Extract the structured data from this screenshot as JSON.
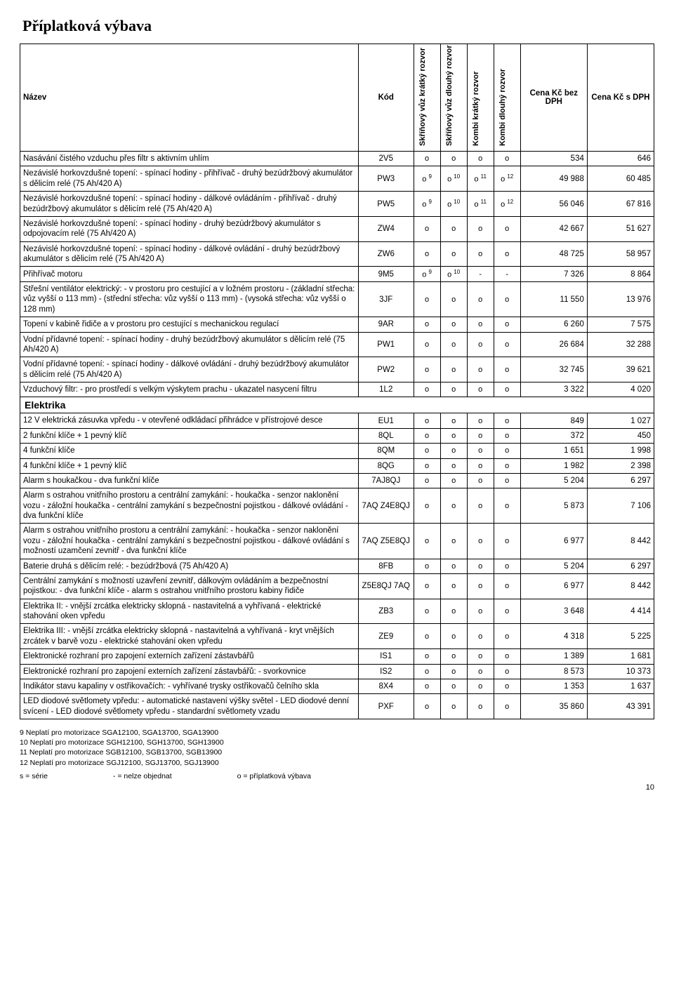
{
  "title": "Příplatková výbava",
  "headers": {
    "name": "Název",
    "kod": "Kód",
    "cols": [
      "Skříňový vůz krátký rozvor",
      "Skříňový vůz dlouhý rozvor",
      "Kombi krátký rozvor",
      "Kombi dlouhý rozvor"
    ],
    "price_no_vat": "Cena Kč bez DPH",
    "price_vat": "Cena Kč s DPH"
  },
  "rows": [
    {
      "name": "Nasávání čistého vzduchu přes filtr s aktivním uhlím",
      "kod": "2V5",
      "avail": [
        "o",
        "o",
        "o",
        "o"
      ],
      "p1": "534",
      "p2": "646"
    },
    {
      "name": "Nezávislé horkovzdušné topení: - spínací hodiny - přihřívač - druhý bezúdržbový akumulátor s dělicím relé (75 Ah/420 A)",
      "kod": "PW3",
      "avail": [
        "o 9",
        "o 10",
        "o 11",
        "o 12"
      ],
      "sup": true,
      "p1": "49 988",
      "p2": "60 485"
    },
    {
      "name": "Nezávislé horkovzdušné topení: - spínací hodiny - dálkové ovládáním - přihřívač - druhý bezúdržbový akumulátor s dělicím relé (75 Ah/420 A)",
      "kod": "PW5",
      "avail": [
        "o 9",
        "o 10",
        "o 11",
        "o 12"
      ],
      "sup": true,
      "p1": "56 046",
      "p2": "67 816"
    },
    {
      "name": "Nezávislé horkovzdušné topení: - spínací hodiny - druhý bezúdržbový akumulátor s odpojovacím relé (75 Ah/420 A)",
      "kod": "ZW4",
      "avail": [
        "o",
        "o",
        "o",
        "o"
      ],
      "p1": "42 667",
      "p2": "51 627"
    },
    {
      "name": "Nezávislé horkovzdušné topení: - spínací hodiny - dálkové ovládání - druhý bezúdržbový akumulátor s dělicím relé (75 Ah/420 A)",
      "kod": "ZW6",
      "avail": [
        "o",
        "o",
        "o",
        "o"
      ],
      "p1": "48 725",
      "p2": "58 957"
    },
    {
      "name": "Přihřívač motoru",
      "kod": "9M5",
      "avail": [
        "o 9",
        "o 10",
        "-",
        "-"
      ],
      "sup": true,
      "p1": "7 326",
      "p2": "8 864"
    },
    {
      "name": "Střešní ventilátor elektrický: - v prostoru pro cestující a v ložném prostoru - (základní střecha: vůz vyšší o 113 mm) - (střední střecha: vůz vyšší o 113 mm) - (vysoká střecha: vůz vyšší o 128 mm)",
      "kod": "3JF",
      "avail": [
        "o",
        "o",
        "o",
        "o"
      ],
      "p1": "11 550",
      "p2": "13 976"
    },
    {
      "name": "Topení v kabině řidiče a v prostoru pro cestující s mechanickou regulací",
      "kod": "9AR",
      "avail": [
        "o",
        "o",
        "o",
        "o"
      ],
      "p1": "6 260",
      "p2": "7 575"
    },
    {
      "name": "Vodní přídavné topení: - spínací hodiny - druhý bezúdržbový akumulátor s dělicím relé (75 Ah/420 A)",
      "kod": "PW1",
      "avail": [
        "o",
        "o",
        "o",
        "o"
      ],
      "p1": "26 684",
      "p2": "32 288"
    },
    {
      "name": "Vodní přídavné topení: - spínací hodiny - dálkové ovládání - druhý bezúdržbový akumulátor s dělicím relé (75 Ah/420 A)",
      "kod": "PW2",
      "avail": [
        "o",
        "o",
        "o",
        "o"
      ],
      "p1": "32 745",
      "p2": "39 621"
    },
    {
      "name": "Vzduchový filtr: - pro prostředí s velkým výskytem prachu - ukazatel nasycení filtru",
      "kod": "1L2",
      "avail": [
        "o",
        "o",
        "o",
        "o"
      ],
      "p1": "3 322",
      "p2": "4 020"
    },
    {
      "section": "Elektrika"
    },
    {
      "name": "12 V elektrická zásuvka vpředu - v otevřené odkládací přihrádce v přístrojové desce",
      "kod": "EU1",
      "avail": [
        "o",
        "o",
        "o",
        "o"
      ],
      "p1": "849",
      "p2": "1 027"
    },
    {
      "name": "2 funkční klíče + 1 pevný klíč",
      "kod": "8QL",
      "avail": [
        "o",
        "o",
        "o",
        "o"
      ],
      "p1": "372",
      "p2": "450"
    },
    {
      "name": "4 funkční klíče",
      "kod": "8QM",
      "avail": [
        "o",
        "o",
        "o",
        "o"
      ],
      "p1": "1 651",
      "p2": "1 998"
    },
    {
      "name": "4 funkční klíče + 1 pevný klíč",
      "kod": "8QG",
      "avail": [
        "o",
        "o",
        "o",
        "o"
      ],
      "p1": "1 982",
      "p2": "2 398"
    },
    {
      "name": "Alarm s houkačkou - dva funkční klíče",
      "kod": "7AJ8QJ",
      "avail": [
        "o",
        "o",
        "o",
        "o"
      ],
      "p1": "5 204",
      "p2": "6 297"
    },
    {
      "name": "Alarm s ostrahou vnitřního prostoru a centrální zamykání: - houkačka - senzor naklonění vozu - záložní houkačka - centrální zamykání s bezpečnostní pojistkou - dálkové ovládání - dva funkční klíče",
      "kod": "7AQ Z4E8QJ",
      "avail": [
        "o",
        "o",
        "o",
        "o"
      ],
      "p1": "5 873",
      "p2": "7 106"
    },
    {
      "name": "Alarm s ostrahou vnitřního prostoru a centrální zamykání: - houkačka - senzor naklonění vozu - záložní houkačka - centrální zamykání s bezpečnostní pojistkou - dálkové ovládání s možností uzamčení zevnitř - dva funkční klíče",
      "kod": "7AQ Z5E8QJ",
      "avail": [
        "o",
        "o",
        "o",
        "o"
      ],
      "p1": "6 977",
      "p2": "8 442"
    },
    {
      "name": "Baterie druhá s dělicím relé: - bezúdržbová (75 Ah/420 A)",
      "kod": "8FB",
      "avail": [
        "o",
        "o",
        "o",
        "o"
      ],
      "p1": "5 204",
      "p2": "6 297"
    },
    {
      "name": "Centrální zamykání s možností uzavření zevnitř, dálkovým ovládáním a bezpečnostní pojistkou: - dva funkční klíče - alarm s ostrahou vnitřního prostoru kabiny řidiče",
      "kod": "Z5E8QJ 7AQ",
      "avail": [
        "o",
        "o",
        "o",
        "o"
      ],
      "p1": "6 977",
      "p2": "8 442"
    },
    {
      "name": "Elektrika II: - vnější zrcátka elektricky sklopná - nastavitelná a vyhřívaná - elektrické stahování oken vpředu",
      "kod": "ZB3",
      "avail": [
        "o",
        "o",
        "o",
        "o"
      ],
      "p1": "3 648",
      "p2": "4 414"
    },
    {
      "name": "Elektrika III: - vnější zrcátka elektricky sklopná - nastavitelná a vyhřívaná - kryt vnějších zrcátek v barvě vozu - elektrické stahování oken vpředu",
      "kod": "ZE9",
      "avail": [
        "o",
        "o",
        "o",
        "o"
      ],
      "p1": "4 318",
      "p2": "5 225"
    },
    {
      "name": "Elektronické rozhraní pro zapojení externích zařízení zástavbářů",
      "kod": "IS1",
      "avail": [
        "o",
        "o",
        "o",
        "o"
      ],
      "p1": "1 389",
      "p2": "1 681"
    },
    {
      "name": "Elektronické rozhraní pro zapojení externích zařízení zástavbářů: - svorkovnice",
      "kod": "IS2",
      "avail": [
        "o",
        "o",
        "o",
        "o"
      ],
      "p1": "8 573",
      "p2": "10 373"
    },
    {
      "name": "Indikátor stavu kapaliny v ostřikovačích: - vyhřívané trysky ostřikovačů čelního skla",
      "kod": "8X4",
      "avail": [
        "o",
        "o",
        "o",
        "o"
      ],
      "p1": "1 353",
      "p2": "1 637"
    },
    {
      "name": "LED diodové světlomety vpředu: - automatické nastavení výšky světel - LED diodové denní svícení - LED diodové světlomety vpředu - standardní světlomety vzadu",
      "kod": "PXF",
      "avail": [
        "o",
        "o",
        "o",
        "o"
      ],
      "p1": "35 860",
      "p2": "43 391"
    }
  ],
  "footnotes": [
    "9 Neplatí pro motorizace SGA12100, SGA13700, SGA13900",
    "10 Neplatí pro motorizace SGH12100, SGH13700, SGH13900",
    "11 Neplatí pro motorizace SGB12100, SGB13700, SGB13900",
    "12 Neplatí pro motorizace SGJ12100, SGJ13700, SGJ13900"
  ],
  "legend": [
    "s = série",
    "- = nelze objednat",
    "o = příplatková výbava"
  ],
  "page_number": "10"
}
